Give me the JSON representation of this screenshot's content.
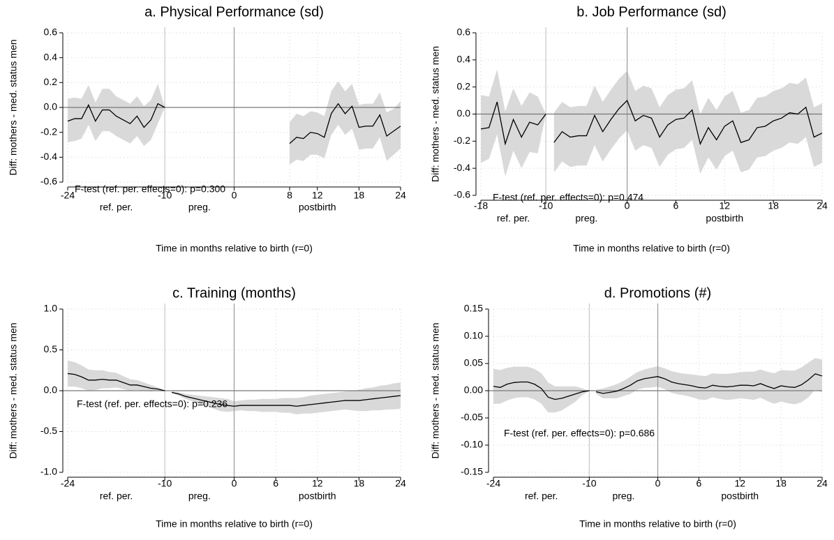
{
  "chart_data": [
    {
      "type": "line",
      "title": "a. Physical Performance (sd)",
      "ylabel": "Diff: mothers - med. status men",
      "xlabel": "Time in months relative to birth (r=0)",
      "xlim": [
        -24,
        24
      ],
      "ylim": [
        -0.6,
        0.6
      ],
      "xticks": [
        -24,
        -10,
        0,
        8,
        12,
        18,
        24
      ],
      "yticks": [
        0.6,
        0.4,
        0.2,
        {
          "value": 0,
          "label": "0.0"
        },
        -0.2,
        -0.4,
        -0.6
      ],
      "grid": true,
      "vlines": [
        -10,
        0
      ],
      "hline": 0,
      "period_labels": [
        "ref. per.",
        "preg.",
        "postbirth"
      ],
      "annotation": "F-test (ref. per. effects=0): p=0.300",
      "color": "#000000",
      "band_color": "#d9d9d9",
      "series": [
        {
          "x": [
            -24,
            -23,
            -22,
            -21,
            -20,
            -19,
            -18,
            -17,
            -16,
            -15,
            -14,
            -13,
            -12,
            -11,
            -10
          ],
          "values": [
            -0.11,
            -0.09,
            -0.09,
            0.02,
            -0.11,
            -0.02,
            -0.02,
            -0.07,
            -0.1,
            -0.13,
            -0.07,
            -0.16,
            -0.1,
            0.03,
            0.0
          ],
          "upper": [
            0.07,
            0.08,
            0.07,
            0.18,
            0.04,
            0.15,
            0.15,
            0.09,
            0.06,
            0.03,
            0.09,
            0.01,
            0.06,
            0.19,
            0.0
          ],
          "lower": [
            -0.28,
            -0.27,
            -0.25,
            -0.14,
            -0.27,
            -0.19,
            -0.19,
            -0.23,
            -0.26,
            -0.29,
            -0.23,
            -0.31,
            -0.26,
            -0.13,
            0.0
          ]
        },
        {
          "x": [
            8,
            9,
            10,
            11,
            12,
            13,
            14,
            15,
            16,
            17,
            18,
            19,
            20,
            21,
            22,
            23,
            24
          ],
          "values": [
            -0.29,
            -0.24,
            -0.25,
            -0.2,
            -0.21,
            -0.24,
            -0.05,
            0.03,
            -0.05,
            0.01,
            -0.16,
            -0.15,
            -0.15,
            -0.06,
            -0.23,
            -0.19,
            -0.15
          ],
          "upper": [
            -0.12,
            -0.05,
            -0.07,
            -0.03,
            -0.04,
            -0.07,
            0.13,
            0.21,
            0.13,
            0.19,
            0.02,
            0.03,
            0.03,
            0.12,
            -0.04,
            -0.01,
            0.05
          ],
          "lower": [
            -0.46,
            -0.42,
            -0.43,
            -0.38,
            -0.38,
            -0.41,
            -0.22,
            -0.14,
            -0.22,
            -0.17,
            -0.34,
            -0.33,
            -0.33,
            -0.24,
            -0.43,
            -0.38,
            -0.33
          ]
        }
      ]
    },
    {
      "type": "line",
      "title": "b. Job Performance (sd)",
      "ylabel": "Diff: mothers - med. status men",
      "xlabel": "Time in months relative to birth (r=0)",
      "xlim": [
        -18,
        24
      ],
      "ylim": [
        -0.6,
        0.6
      ],
      "xticks": [
        -18,
        -10,
        0,
        6,
        12,
        18,
        24
      ],
      "yticks": [
        0.6,
        0.4,
        0.2,
        {
          "value": 0,
          "label": "0.0"
        },
        -0.2,
        -0.4,
        -0.6
      ],
      "grid": true,
      "vlines": [
        -10,
        0
      ],
      "hline": 0,
      "period_labels": [
        "ref. per.",
        "preg.",
        "postbirth"
      ],
      "annotation": "F-test (ref. per. effects=0): p=0.474",
      "color": "#000000",
      "band_color": "#d9d9d9",
      "series": [
        {
          "x": [
            -18,
            -17,
            -16,
            -15,
            -14,
            -13,
            -12,
            -11,
            -10
          ],
          "values": [
            -0.11,
            -0.1,
            0.09,
            -0.22,
            -0.04,
            -0.17,
            -0.06,
            -0.08,
            0.0
          ],
          "upper": [
            0.14,
            0.13,
            0.33,
            0.02,
            0.19,
            0.06,
            0.16,
            0.13,
            0.0
          ],
          "lower": [
            -0.36,
            -0.33,
            -0.15,
            -0.46,
            -0.27,
            -0.4,
            -0.28,
            -0.29,
            0.0
          ]
        },
        {
          "x": [
            -9,
            -8,
            -7,
            -6,
            -5,
            -4,
            -3,
            -2,
            -1,
            0,
            1,
            2,
            3,
            4,
            5,
            6,
            7,
            8,
            9,
            10,
            11,
            12,
            13,
            14,
            15,
            16,
            17,
            18,
            19,
            20,
            21,
            22,
            23,
            24
          ],
          "values": [
            -0.21,
            -0.13,
            -0.17,
            -0.16,
            -0.16,
            -0.01,
            -0.13,
            -0.04,
            0.04,
            0.1,
            -0.05,
            -0.01,
            -0.03,
            -0.17,
            -0.08,
            -0.04,
            -0.03,
            0.03,
            -0.22,
            -0.1,
            -0.19,
            -0.09,
            -0.05,
            -0.21,
            -0.19,
            -0.1,
            -0.09,
            -0.05,
            -0.03,
            0.01,
            0.0,
            0.05,
            -0.17,
            -0.14
          ],
          "upper": [
            0.01,
            0.09,
            0.05,
            0.06,
            0.06,
            0.21,
            0.09,
            0.18,
            0.26,
            0.32,
            0.17,
            0.21,
            0.19,
            0.05,
            0.14,
            0.18,
            0.19,
            0.25,
            0.0,
            0.12,
            0.03,
            0.13,
            0.17,
            0.01,
            0.03,
            0.12,
            0.13,
            0.17,
            0.19,
            0.23,
            0.22,
            0.27,
            0.05,
            0.08
          ],
          "lower": [
            -0.43,
            -0.35,
            -0.39,
            -0.38,
            -0.38,
            -0.23,
            -0.35,
            -0.26,
            -0.18,
            -0.12,
            -0.27,
            -0.23,
            -0.25,
            -0.39,
            -0.3,
            -0.26,
            -0.25,
            -0.19,
            -0.44,
            -0.32,
            -0.41,
            -0.31,
            -0.27,
            -0.43,
            -0.41,
            -0.32,
            -0.31,
            -0.27,
            -0.25,
            -0.21,
            -0.22,
            -0.17,
            -0.39,
            -0.36
          ]
        }
      ]
    },
    {
      "type": "line",
      "title": "c. Training (months)",
      "ylabel": "Diff: mothers - med. status men",
      "xlabel": "Time in months relative to birth (r=0)",
      "xlim": [
        -24,
        24
      ],
      "ylim": [
        -1,
        1
      ],
      "xticks": [
        -24,
        -10,
        0,
        6,
        12,
        18,
        24
      ],
      "yticks": [
        {
          "value": 1,
          "label": "1.0"
        },
        0.5,
        {
          "value": 0,
          "label": "0.0"
        },
        -0.5,
        {
          "value": -1,
          "label": "-1.0"
        }
      ],
      "grid": true,
      "vlines": [
        -10,
        0
      ],
      "hline": 0,
      "period_labels": [
        "ref. per.",
        "preg.",
        "postbirth"
      ],
      "annotation": "F-test (ref. per. effects=0): p=0.236",
      "color": "#000000",
      "band_color": "#d9d9d9",
      "series": [
        {
          "x": [
            -24,
            -23,
            -22,
            -21,
            -20,
            -19,
            -18,
            -17,
            -16,
            -15,
            -14,
            -13,
            -12,
            -11,
            -10
          ],
          "values": [
            0.21,
            0.2,
            0.17,
            0.13,
            0.13,
            0.14,
            0.13,
            0.13,
            0.1,
            0.07,
            0.07,
            0.05,
            0.03,
            0.02,
            0.0
          ],
          "upper": [
            0.37,
            0.35,
            0.31,
            0.26,
            0.25,
            0.25,
            0.23,
            0.22,
            0.18,
            0.14,
            0.13,
            0.1,
            0.07,
            0.04,
            0.0
          ],
          "lower": [
            0.05,
            0.05,
            0.03,
            0.0,
            0.01,
            0.03,
            0.03,
            0.04,
            0.02,
            0.0,
            0.01,
            0.0,
            -0.01,
            0.0,
            0.0
          ]
        },
        {
          "x": [
            -9,
            -8,
            -7,
            -6,
            -5,
            -4,
            -3,
            -2,
            -1,
            0,
            1,
            2,
            3,
            4,
            5,
            6,
            7,
            8,
            9,
            10,
            11,
            12,
            13,
            14,
            15,
            16,
            17,
            18,
            19,
            20,
            21,
            22,
            23,
            24
          ],
          "values": [
            -0.02,
            -0.04,
            -0.07,
            -0.09,
            -0.11,
            -0.13,
            -0.15,
            -0.17,
            -0.18,
            -0.19,
            -0.18,
            -0.18,
            -0.18,
            -0.18,
            -0.18,
            -0.18,
            -0.18,
            -0.18,
            -0.19,
            -0.18,
            -0.17,
            -0.16,
            -0.15,
            -0.14,
            -0.13,
            -0.12,
            -0.12,
            -0.12,
            -0.11,
            -0.1,
            -0.09,
            -0.08,
            -0.07,
            -0.06
          ],
          "upper": [
            -0.01,
            -0.02,
            -0.04,
            -0.05,
            -0.06,
            -0.07,
            -0.08,
            -0.09,
            -0.1,
            -0.13,
            -0.12,
            -0.11,
            -0.11,
            -0.1,
            -0.1,
            -0.1,
            -0.09,
            -0.09,
            -0.09,
            -0.08,
            -0.06,
            -0.05,
            -0.04,
            -0.03,
            -0.02,
            -0.01,
            0.0,
            0.01,
            0.03,
            0.04,
            0.06,
            0.07,
            0.09,
            0.1
          ],
          "lower": [
            -0.03,
            -0.06,
            -0.1,
            -0.13,
            -0.16,
            -0.19,
            -0.22,
            -0.25,
            -0.26,
            -0.25,
            -0.24,
            -0.25,
            -0.25,
            -0.26,
            -0.26,
            -0.26,
            -0.27,
            -0.27,
            -0.29,
            -0.28,
            -0.28,
            -0.27,
            -0.26,
            -0.25,
            -0.24,
            -0.23,
            -0.24,
            -0.25,
            -0.25,
            -0.24,
            -0.24,
            -0.23,
            -0.23,
            -0.22
          ]
        }
      ]
    },
    {
      "type": "line",
      "title": "d. Promotions (#)",
      "ylabel": "Diff: mothers - med. status men",
      "xlabel": "Time in months relative to birth (r=0)",
      "xlim": [
        -24,
        24
      ],
      "ylim": [
        -0.15,
        0.15
      ],
      "xticks": [
        -24,
        -10,
        0,
        6,
        12,
        18,
        24
      ],
      "yticks": [
        0.15,
        {
          "value": 0.1,
          "label": "0.10"
        },
        0.05,
        {
          "value": 0,
          "label": "0.00"
        },
        -0.05,
        {
          "value": -0.1,
          "label": "-0.10"
        },
        -0.15
      ],
      "grid": true,
      "vlines": [
        -10,
        0
      ],
      "hline": 0,
      "period_labels": [
        "ref. per.",
        "preg.",
        "postbirth"
      ],
      "annotation": "F-test (ref. per. effects=0): p=0.686",
      "color": "#000000",
      "band_color": "#d9d9d9",
      "series": [
        {
          "x": [
            -24,
            -23,
            -22,
            -21,
            -20,
            -19,
            -18,
            -17,
            -16,
            -15,
            -14,
            -13,
            -12,
            -11,
            -10
          ],
          "values": [
            0.008,
            0.006,
            0.012,
            0.015,
            0.016,
            0.016,
            0.012,
            0.004,
            -0.012,
            -0.016,
            -0.014,
            -0.01,
            -0.006,
            -0.002,
            0.0
          ],
          "upper": [
            0.04,
            0.038,
            0.042,
            0.044,
            0.044,
            0.044,
            0.04,
            0.032,
            0.015,
            0.008,
            0.008,
            0.008,
            0.008,
            0.004,
            0.0
          ],
          "lower": [
            -0.024,
            -0.024,
            -0.018,
            -0.014,
            -0.012,
            -0.012,
            -0.016,
            -0.024,
            -0.04,
            -0.04,
            -0.036,
            -0.028,
            -0.02,
            -0.008,
            0.0
          ]
        },
        {
          "x": [
            -9,
            -8,
            -7,
            -6,
            -5,
            -4,
            -3,
            -2,
            -1,
            0,
            1,
            2,
            3,
            4,
            5,
            6,
            7,
            8,
            9,
            10,
            11,
            12,
            13,
            14,
            15,
            16,
            17,
            18,
            19,
            20,
            21,
            22,
            23,
            24
          ],
          "values": [
            -0.002,
            -0.005,
            -0.003,
            -0.001,
            0.004,
            0.01,
            0.018,
            0.022,
            0.024,
            0.026,
            0.022,
            0.016,
            0.013,
            0.011,
            0.009,
            0.006,
            0.005,
            0.01,
            0.008,
            0.007,
            0.008,
            0.01,
            0.01,
            0.009,
            0.013,
            0.008,
            0.004,
            0.009,
            0.007,
            0.006,
            0.011,
            0.02,
            0.031,
            0.027
          ],
          "upper": [
            0.002,
            0.004,
            0.008,
            0.012,
            0.018,
            0.026,
            0.034,
            0.039,
            0.042,
            0.045,
            0.041,
            0.036,
            0.033,
            0.031,
            0.03,
            0.028,
            0.027,
            0.032,
            0.031,
            0.031,
            0.032,
            0.034,
            0.035,
            0.035,
            0.039,
            0.035,
            0.032,
            0.038,
            0.037,
            0.037,
            0.043,
            0.052,
            0.06,
            0.057
          ],
          "lower": [
            -0.006,
            -0.014,
            -0.014,
            -0.014,
            -0.01,
            -0.006,
            0.002,
            0.005,
            0.006,
            0.007,
            0.003,
            -0.004,
            -0.007,
            -0.009,
            -0.012,
            -0.016,
            -0.017,
            -0.012,
            -0.015,
            -0.017,
            -0.016,
            -0.014,
            -0.015,
            -0.017,
            -0.013,
            -0.019,
            -0.024,
            -0.02,
            -0.023,
            -0.025,
            -0.021,
            -0.012,
            0.002,
            -0.003
          ]
        }
      ]
    }
  ]
}
